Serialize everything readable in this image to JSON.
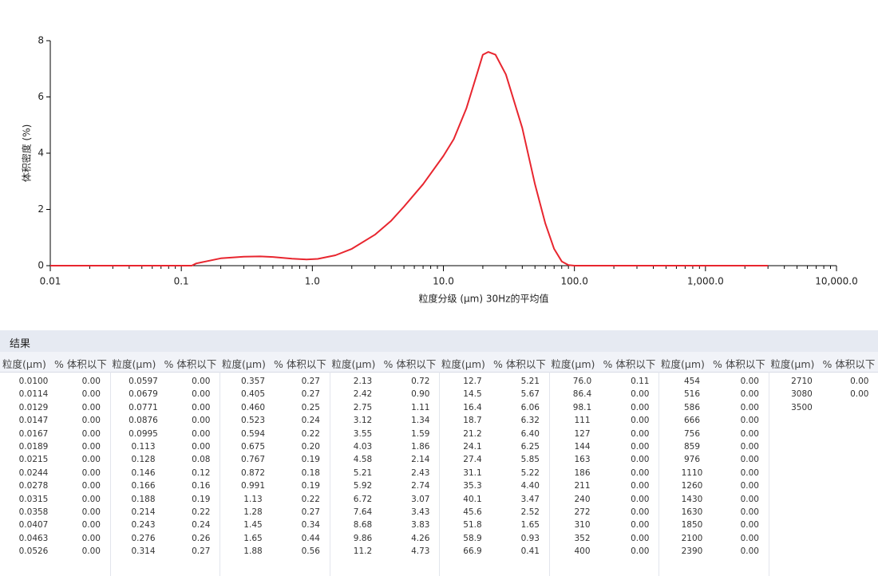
{
  "chart_data": {
    "type": "line",
    "xlabel": "粒度分级 (μm)     30Hz的平均值",
    "ylabel": "体积密度 (%)",
    "log_x": true,
    "xlim": [
      0.01,
      10000
    ],
    "xticks": [
      0.01,
      0.1,
      {
        "value": 1,
        "label": "1.0"
      },
      {
        "value": 10,
        "label": "10.0"
      },
      {
        "value": 100,
        "label": "100.0"
      },
      {
        "value": 1000,
        "label": "1,000.0"
      },
      {
        "value": 10000,
        "label": "10,000.0"
      }
    ],
    "ylim": [
      0,
      8
    ],
    "yticks": [
      0,
      2,
      4,
      6,
      8
    ],
    "x": [
      0.01,
      0.1,
      0.12,
      0.13,
      0.2,
      0.3,
      0.4,
      0.5,
      0.7,
      0.9,
      1.1,
      1.5,
      2,
      3,
      4,
      5,
      7,
      10,
      12,
      15,
      18,
      20,
      22,
      25,
      30,
      40,
      50,
      60,
      70,
      80,
      90,
      100,
      1000,
      3000
    ],
    "series": [
      {
        "color": "#e8262f",
        "values": [
          0,
          0,
          0,
          0.08,
          0.26,
          0.32,
          0.33,
          0.31,
          0.25,
          0.22,
          0.24,
          0.37,
          0.6,
          1.1,
          1.6,
          2.1,
          2.9,
          3.9,
          4.5,
          5.6,
          6.8,
          7.5,
          7.6,
          7.5,
          6.8,
          4.9,
          2.9,
          1.5,
          0.6,
          0.15,
          0.02,
          0,
          0,
          0
        ]
      }
    ]
  },
  "table": {
    "title": "结果",
    "size_header": "粒度(μm)",
    "value_header": "% 体积以下",
    "groups": [
      {
        "sizes": [
          "0.0100",
          "0.0114",
          "0.0129",
          "0.0147",
          "0.0167",
          "0.0189",
          "0.0215",
          "0.0244",
          "0.0278",
          "0.0315",
          "0.0358",
          "0.0407",
          "0.0463",
          "0.0526"
        ],
        "values": [
          "0.00",
          "0.00",
          "0.00",
          "0.00",
          "0.00",
          "0.00",
          "0.00",
          "0.00",
          "0.00",
          "0.00",
          "0.00",
          "0.00",
          "0.00",
          "0.00"
        ]
      },
      {
        "sizes": [
          "0.0597",
          "0.0679",
          "0.0771",
          "0.0876",
          "0.0995",
          "0.113",
          "0.128",
          "0.146",
          "0.166",
          "0.188",
          "0.214",
          "0.243",
          "0.276",
          "0.314"
        ],
        "values": [
          "0.00",
          "0.00",
          "0.00",
          "0.00",
          "0.00",
          "0.00",
          "0.08",
          "0.12",
          "0.16",
          "0.19",
          "0.22",
          "0.24",
          "0.26",
          "0.27"
        ]
      },
      {
        "sizes": [
          "0.357",
          "0.405",
          "0.460",
          "0.523",
          "0.594",
          "0.675",
          "0.767",
          "0.872",
          "0.991",
          "1.13",
          "1.28",
          "1.45",
          "1.65",
          "1.88"
        ],
        "values": [
          "0.27",
          "0.27",
          "0.25",
          "0.24",
          "0.22",
          "0.20",
          "0.19",
          "0.18",
          "0.19",
          "0.22",
          "0.27",
          "0.34",
          "0.44",
          "0.56"
        ]
      },
      {
        "sizes": [
          "2.13",
          "2.42",
          "2.75",
          "3.12",
          "3.55",
          "4.03",
          "4.58",
          "5.21",
          "5.92",
          "6.72",
          "7.64",
          "8.68",
          "9.86",
          "11.2"
        ],
        "values": [
          "0.72",
          "0.90",
          "1.11",
          "1.34",
          "1.59",
          "1.86",
          "2.14",
          "2.43",
          "2.74",
          "3.07",
          "3.43",
          "3.83",
          "4.26",
          "4.73"
        ]
      },
      {
        "sizes": [
          "12.7",
          "14.5",
          "16.4",
          "18.7",
          "21.2",
          "24.1",
          "27.4",
          "31.1",
          "35.3",
          "40.1",
          "45.6",
          "51.8",
          "58.9",
          "66.9"
        ],
        "values": [
          "5.21",
          "5.67",
          "6.06",
          "6.32",
          "6.40",
          "6.25",
          "5.85",
          "5.22",
          "4.40",
          "3.47",
          "2.52",
          "1.65",
          "0.93",
          "0.41"
        ]
      },
      {
        "sizes": [
          "76.0",
          "86.4",
          "98.1",
          "111",
          "127",
          "144",
          "163",
          "186",
          "211",
          "240",
          "272",
          "310",
          "352",
          "400"
        ],
        "values": [
          "0.11",
          "0.00",
          "0.00",
          "0.00",
          "0.00",
          "0.00",
          "0.00",
          "0.00",
          "0.00",
          "0.00",
          "0.00",
          "0.00",
          "0.00",
          "0.00"
        ]
      },
      {
        "sizes": [
          "454",
          "516",
          "586",
          "666",
          "756",
          "859",
          "976",
          "1110",
          "1260",
          "1430",
          "1630",
          "1850",
          "2100",
          "2390"
        ],
        "values": [
          "0.00",
          "0.00",
          "0.00",
          "0.00",
          "0.00",
          "0.00",
          "0.00",
          "0.00",
          "0.00",
          "0.00",
          "0.00",
          "0.00",
          "0.00",
          "0.00"
        ]
      },
      {
        "sizes": [
          "2710",
          "3080",
          "3500"
        ],
        "values": [
          "0.00",
          "0.00",
          null
        ]
      }
    ]
  }
}
